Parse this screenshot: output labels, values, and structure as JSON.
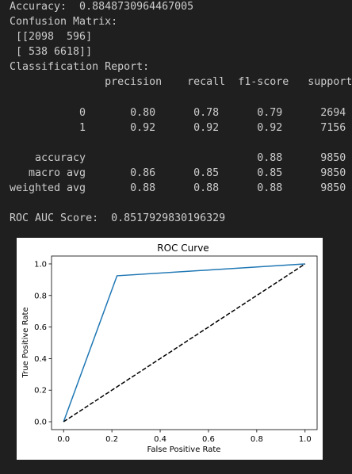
{
  "console": {
    "lines": [
      "Accuracy:  0.8848730964467005",
      "Confusion Matrix:",
      " [[2098  596]",
      " [ 538 6618]]",
      "Classification Report:",
      "               precision    recall  f1-score   support",
      "",
      "           0       0.80      0.78      0.79      2694",
      "           1       0.92      0.92      0.92      7156",
      "",
      "    accuracy                           0.88      9850",
      "   macro avg       0.86      0.85      0.85      9850",
      "weighted avg       0.88      0.88      0.88      9850",
      "",
      "ROC AUC Score:  0.8517929830196329"
    ]
  },
  "chart_data": {
    "type": "line",
    "title": "ROC Curve",
    "xlabel": "False Positive Rate",
    "ylabel": "True Positive Rate",
    "xlim": [
      -0.05,
      1.05
    ],
    "ylim": [
      -0.05,
      1.05
    ],
    "xticks": [
      "0.0",
      "0.2",
      "0.4",
      "0.6",
      "0.8",
      "1.0"
    ],
    "yticks": [
      "0.0",
      "0.2",
      "0.4",
      "0.6",
      "0.8",
      "1.0"
    ],
    "series": [
      {
        "x": [
          0.0,
          0.2212,
          1.0
        ],
        "y": [
          0.0,
          0.9248,
          1.0
        ],
        "color": "#1f77b4",
        "style": "solid"
      },
      {
        "x": [
          0.0,
          1.0
        ],
        "y": [
          0.0,
          1.0
        ],
        "color": "#000000",
        "style": "dashed"
      }
    ],
    "grid": false,
    "legend": false
  }
}
